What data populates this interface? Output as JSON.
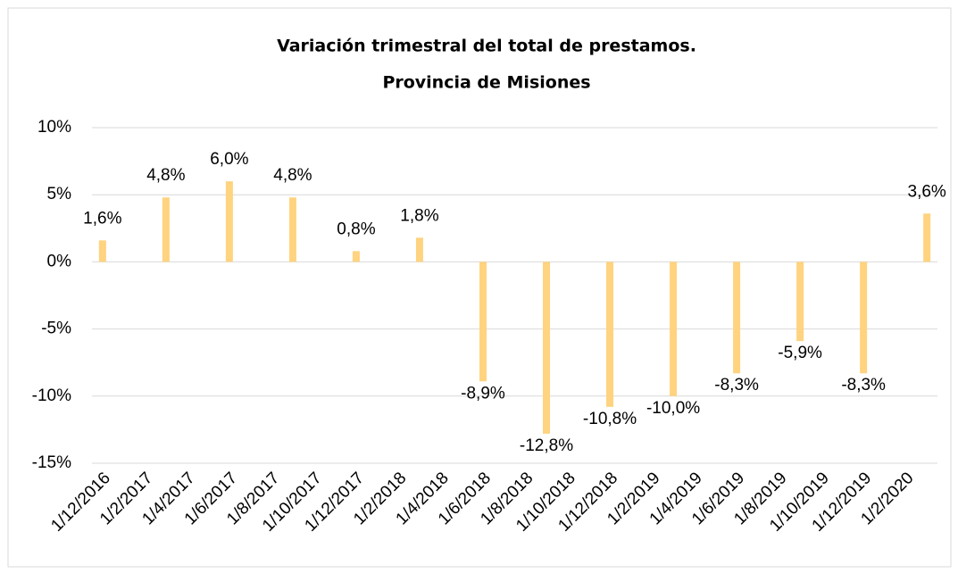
{
  "chart_data": {
    "type": "bar",
    "title": "Variación trimestral del total de prestamos.",
    "subtitle": "Provincia de Misiones",
    "categories": [
      "1/12/2016",
      null,
      "1/2/2017",
      null,
      "1/4/2017",
      null,
      "1/6/2017",
      null,
      "1/8/2017",
      null,
      "1/10/2017",
      null,
      "1/12/2017",
      null,
      "1/2/2018",
      null,
      "1/4/2018",
      null,
      "1/6/2018",
      null,
      "1/8/2018",
      null,
      "1/10/2018",
      null,
      "1/12/2018",
      null,
      "1/2/2019",
      null,
      "1/4/2019",
      null,
      "1/6/2019",
      null,
      "1/8/2019",
      null,
      "1/10/2019",
      null,
      "1/12/2019",
      null,
      "1/2/2020",
      null
    ],
    "values": [
      1.6,
      null,
      null,
      4.8,
      null,
      null,
      6.0,
      null,
      null,
      4.8,
      null,
      null,
      0.8,
      null,
      null,
      1.8,
      null,
      null,
      -8.9,
      null,
      null,
      -12.8,
      null,
      null,
      -10.8,
      null,
      null,
      -10.0,
      null,
      null,
      -8.3,
      null,
      null,
      -5.9,
      null,
      null,
      -8.3,
      null,
      null,
      3.6
    ],
    "value_labels": [
      "1,6%",
      null,
      null,
      "4,8%",
      null,
      null,
      "6,0%",
      null,
      null,
      "4,8%",
      null,
      null,
      "0,8%",
      null,
      null,
      "1,8%",
      null,
      null,
      "-8,9%",
      null,
      null,
      "-12,8%",
      null,
      null,
      "-10,8%",
      null,
      null,
      "-10,0%",
      null,
      null,
      "-8,3%",
      null,
      null,
      "-5,9%",
      null,
      null,
      "-8,3%",
      null,
      null,
      "3,6%"
    ],
    "color": "#ffd37f",
    "ylim": [
      -15,
      10
    ],
    "yticks": [
      {
        "value": -15,
        "label": "-15%"
      },
      {
        "value": -10,
        "label": "-10%"
      },
      {
        "value": -5,
        "label": "-5%"
      },
      {
        "value": 0,
        "label": "0%"
      },
      {
        "value": 5,
        "label": "5%"
      },
      {
        "value": 10,
        "label": "10%"
      }
    ],
    "grid": true
  }
}
